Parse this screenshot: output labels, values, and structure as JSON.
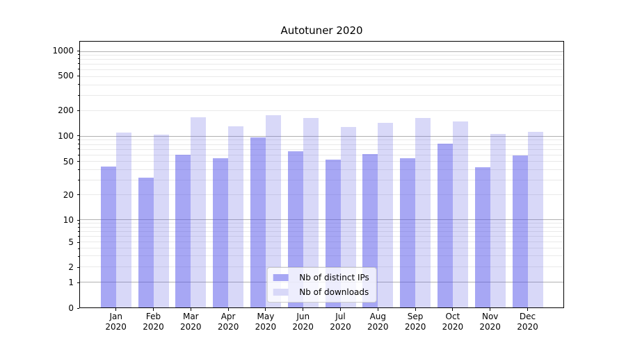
{
  "chart_data": {
    "type": "bar",
    "title": "Autotuner 2020",
    "months": [
      "Jan",
      "Feb",
      "Mar",
      "Apr",
      "May",
      "Jun",
      "Jul",
      "Aug",
      "Sep",
      "Oct",
      "Nov",
      "Dec"
    ],
    "year": "2020",
    "series": [
      {
        "name": "Nb of distinct IPs",
        "color": "#a7a7f4",
        "values": [
          44,
          32,
          60,
          55,
          97,
          66,
          53,
          61,
          55,
          82,
          43,
          59
        ]
      },
      {
        "name": "Nb of downloads",
        "color": "#d8d8f8",
        "values": [
          110,
          105,
          168,
          131,
          178,
          165,
          128,
          145,
          165,
          151,
          106,
          112
        ]
      }
    ],
    "y_ticks": [
      0,
      1,
      2,
      5,
      10,
      20,
      50,
      100,
      200,
      500,
      1000
    ],
    "ylim": [
      0,
      1300
    ],
    "yscale": "log-style with 0 baseline (ticks at 0,1,2,5,10,20,50,100,200,500,1000)",
    "xlabel": "",
    "ylabel": "",
    "grid": "horizontal major and minor gridlines",
    "legend_position": "lower center",
    "colors": {
      "grid_major": "#b0b0b0",
      "grid_minor": "#e9e9e9",
      "axis": "#000000",
      "background": "#ffffff",
      "legend_border": "#cccccc"
    }
  }
}
